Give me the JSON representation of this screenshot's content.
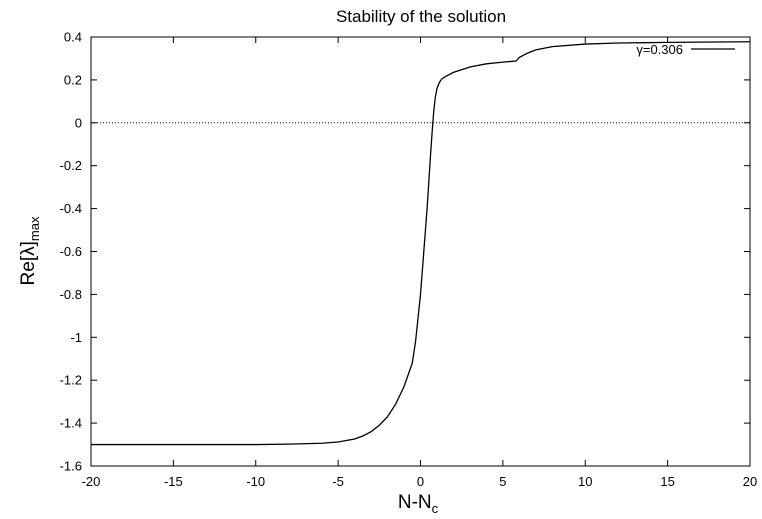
{
  "chart_data": {
    "type": "line",
    "title": "Stability of the solution",
    "xlabel": {
      "base": "N-N",
      "sub": "c"
    },
    "ylabel": {
      "base": "Re[λ]",
      "sub": "max"
    },
    "xlim": [
      -20,
      20
    ],
    "ylim": [
      -1.6,
      0.4
    ],
    "xticks": [
      -20,
      -15,
      -10,
      -5,
      0,
      5,
      10,
      15,
      20
    ],
    "yticks": [
      0.4,
      0.2,
      0,
      -0.2,
      -0.4,
      -0.6,
      -0.8,
      -1,
      -1.2,
      -1.4,
      -1.6
    ],
    "grid": false,
    "legend_position": "top-right",
    "reference_line": {
      "y": 0,
      "style": "dotted"
    },
    "series": [
      {
        "name": "γ=0.306",
        "color": "#000000",
        "x": [
          -20,
          -15,
          -10,
          -8,
          -6,
          -5,
          -4,
          -3.5,
          -3,
          -2.5,
          -2,
          -1.5,
          -1,
          -0.5,
          -0.3,
          0,
          0.2,
          0.4,
          0.5,
          0.6,
          0.7,
          0.8,
          0.9,
          1.0,
          1.1,
          1.2,
          1.3,
          1.5,
          2,
          3,
          4,
          5,
          5.8,
          6,
          6.5,
          7,
          8,
          10,
          12,
          15,
          20
        ],
        "y": [
          -1.5,
          -1.5,
          -1.5,
          -1.498,
          -1.494,
          -1.488,
          -1.474,
          -1.46,
          -1.44,
          -1.41,
          -1.37,
          -1.31,
          -1.23,
          -1.12,
          -1.02,
          -0.8,
          -0.6,
          -0.4,
          -0.28,
          -0.16,
          -0.05,
          0.05,
          0.12,
          0.16,
          0.18,
          0.195,
          0.205,
          0.215,
          0.235,
          0.26,
          0.275,
          0.283,
          0.288,
          0.305,
          0.325,
          0.34,
          0.355,
          0.367,
          0.372,
          0.375,
          0.378
        ]
      }
    ]
  }
}
